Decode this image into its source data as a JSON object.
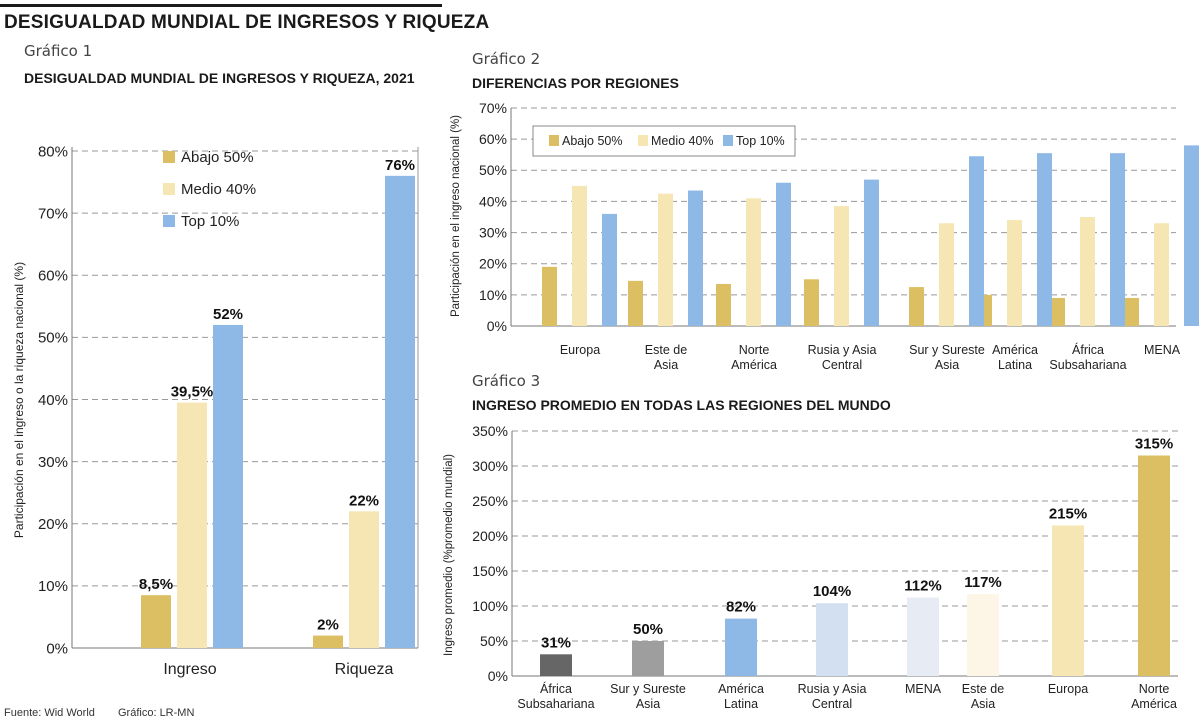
{
  "header": {
    "title": "DESIGUALDAD MUNDIAL DE INGRESOS Y RIQUEZA"
  },
  "g1": {
    "label": "Gráfico 1",
    "title": "DESIGUALDAD MUNDIAL DE INGRESOS Y RIQUEZA, 2021"
  },
  "g2": {
    "label": "Gráfico 2",
    "title": "DIFERENCIAS POR REGIONES"
  },
  "g3": {
    "label": "Gráfico 3",
    "title": "INGRESO PROMEDIO EN TODAS LAS REGIONES DEL MUNDO"
  },
  "footer": {
    "source": "Fuente: Wid World",
    "credit": "Gráfico: LR-MN"
  },
  "colors": {
    "low": "#dcbf62",
    "mid": "#f6e6b3",
    "top": "#8eb8e5",
    "grid": "#999999"
  },
  "chart_data": [
    {
      "type": "bar",
      "title": "DESIGUALDAD MUNDIAL DE INGRESOS Y RIQUEZA, 2021",
      "ylabel": "Participación en el ingreso o la riqueza nacional (%)",
      "ylim": [
        0,
        80
      ],
      "yticks": [
        "0%",
        "10%",
        "20%",
        "30%",
        "40%",
        "50%",
        "60%",
        "70%",
        "80%"
      ],
      "categories": [
        "Ingreso",
        "Riqueza"
      ],
      "series": [
        {
          "name": "Abajo 50%",
          "values": [
            8.5,
            2
          ],
          "labels": [
            "8,5%",
            "2%"
          ]
        },
        {
          "name": "Medio 40%",
          "values": [
            39.5,
            22
          ],
          "labels": [
            "39,5%",
            "22%"
          ]
        },
        {
          "name": "Top 10%",
          "values": [
            52,
            76
          ],
          "labels": [
            "52%",
            "76%"
          ]
        }
      ],
      "legend": "top-left"
    },
    {
      "type": "bar",
      "title": "DIFERENCIAS POR REGIONES",
      "ylabel": "Participación en el ingreso nacional (%)",
      "ylim": [
        0,
        70
      ],
      "yticks": [
        "0%",
        "10%",
        "20%",
        "30%",
        "40%",
        "50%",
        "60%",
        "70%"
      ],
      "categories": [
        [
          "Europa"
        ],
        [
          "Este de",
          "Asia"
        ],
        [
          "Norte",
          "América"
        ],
        [
          "Rusia y Asia",
          "Central"
        ],
        [
          "Sur y Sureste",
          "Asia"
        ],
        [
          "América",
          "Latina"
        ],
        [
          "África",
          "Subsahariana"
        ],
        [
          "MENA"
        ]
      ],
      "series": [
        {
          "name": "Abajo 50%",
          "values": [
            19,
            14.5,
            13.5,
            15,
            12.5,
            10,
            9,
            9
          ]
        },
        {
          "name": "Medio 40%",
          "values": [
            45,
            42.5,
            41,
            38.5,
            33,
            34,
            35,
            33
          ]
        },
        {
          "name": "Top 10%",
          "values": [
            36,
            43.5,
            46,
            47,
            54.5,
            55.5,
            55.5,
            58
          ]
        }
      ],
      "legend": "top-left"
    },
    {
      "type": "bar",
      "title": "INGRESO PROMEDIO EN TODAS LAS REGIONES DEL MUNDO",
      "ylabel": "Ingreso promedio (%promedio mundial)",
      "ylim": [
        0,
        350
      ],
      "yticks": [
        "0%",
        "50%",
        "100%",
        "150%",
        "200%",
        "250%",
        "300%",
        "350%"
      ],
      "categories": [
        [
          "África",
          "Subsahariana"
        ],
        [
          "Sur y Sureste",
          "Asia"
        ],
        [
          "América",
          "Latina"
        ],
        [
          "Rusia y Asia",
          "Central"
        ],
        [
          "MENA"
        ],
        [
          "Este de",
          "Asia"
        ],
        [
          "Europa"
        ],
        [
          "Norte",
          "América"
        ]
      ],
      "values": [
        31,
        50,
        82,
        104,
        112,
        117,
        215,
        315
      ],
      "labels": [
        "31%",
        "50%",
        "82%",
        "104%",
        "112%",
        "117%",
        "215%",
        "315%"
      ],
      "bar_colors": [
        "#666666",
        "#9e9e9e",
        "#8eb8e5",
        "#d3e0f2",
        "#e6ebf4",
        "#fdf5e6",
        "#f6e6b3",
        "#dcbf62"
      ]
    }
  ]
}
